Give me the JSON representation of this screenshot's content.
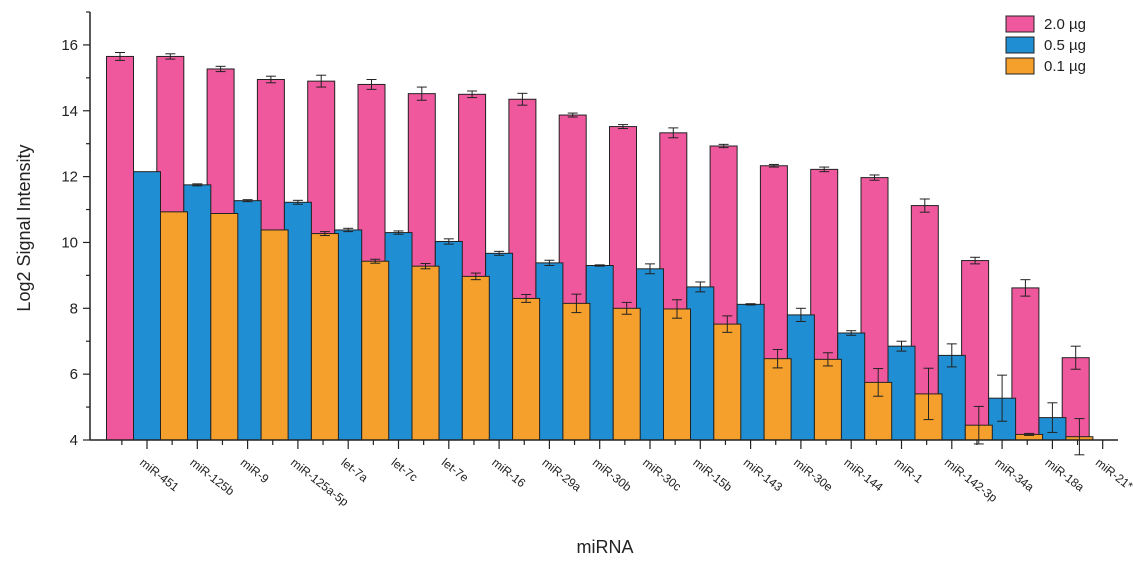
{
  "chart_data": {
    "type": "bar",
    "xlabel": "miRNA",
    "ylabel": "Log2 Signal Intensity",
    "ylim": [
      4,
      17
    ],
    "yticks": [
      "4",
      "6",
      "8",
      "10",
      "12",
      "14",
      "16"
    ],
    "legend_position": "top-right",
    "categories": [
      "miR-451",
      "miR-125b",
      "miR-9",
      "miR-125a-5p",
      "let-7a",
      "let-7c",
      "let-7e",
      "miR-16",
      "miR-29a",
      "miR-30b",
      "miR-30c",
      "miR-15b",
      "miR-143",
      "miR-30e",
      "miR-144",
      "miR-1",
      "miR-142-3p",
      "miR-34a",
      "miR-18a",
      "miR-21*"
    ],
    "series": [
      {
        "name": "2.0 µg",
        "color": "#f0589e",
        "values": [
          15.65,
          15.65,
          15.27,
          14.95,
          14.9,
          14.8,
          14.52,
          14.5,
          14.35,
          13.87,
          13.52,
          13.33,
          12.93,
          12.33,
          12.22,
          11.97,
          11.12,
          9.45,
          8.62,
          6.5
        ],
        "errors": [
          0.12,
          0.08,
          0.08,
          0.1,
          0.18,
          0.15,
          0.2,
          0.1,
          0.18,
          0.06,
          0.06,
          0.15,
          0.05,
          0.04,
          0.07,
          0.08,
          0.2,
          0.1,
          0.25,
          0.35
        ]
      },
      {
        "name": "0.5 µg",
        "color": "#1f8ed3",
        "values": [
          12.15,
          11.75,
          11.27,
          11.22,
          10.38,
          10.3,
          10.03,
          9.67,
          9.38,
          9.3,
          9.2,
          8.65,
          8.12,
          7.8,
          7.25,
          6.85,
          6.57,
          5.27,
          4.68,
          null
        ],
        "errors": [
          0,
          0.03,
          0.03,
          0.06,
          0.05,
          0.05,
          0.08,
          0.06,
          0.08,
          0.02,
          0.15,
          0.15,
          0.02,
          0.2,
          0.07,
          0.15,
          0.35,
          0.7,
          0.45,
          0
        ]
      },
      {
        "name": "0.1 µg",
        "color": "#f5a02c",
        "values": [
          10.93,
          10.88,
          10.38,
          10.27,
          9.43,
          9.28,
          8.97,
          8.3,
          8.15,
          8.0,
          7.98,
          7.52,
          6.47,
          6.45,
          5.75,
          5.4,
          4.45,
          4.17,
          4.1,
          null
        ],
        "errors": [
          0,
          0,
          0,
          0.06,
          0.06,
          0.08,
          0.1,
          0.12,
          0.28,
          0.18,
          0.28,
          0.25,
          0.28,
          0.2,
          0.42,
          0.78,
          0.57,
          0.03,
          0.55,
          0
        ]
      }
    ]
  }
}
